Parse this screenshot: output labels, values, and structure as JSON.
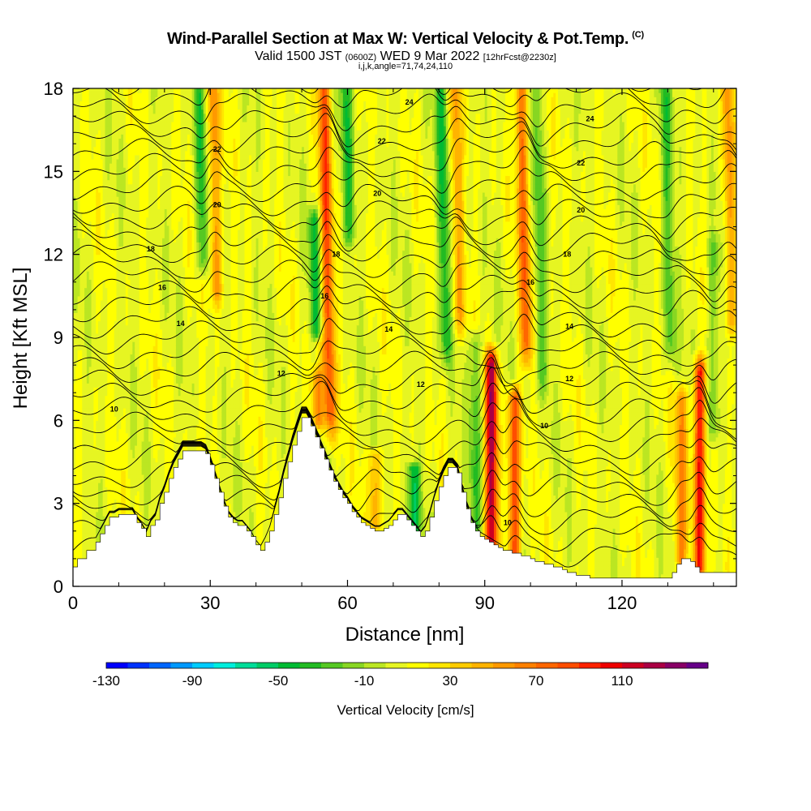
{
  "title": "Wind-Parallel Section at Max W: Vertical Velocity & Pot.Temp.",
  "copyright_mark": "(C)",
  "subtitle_valid": "Valid 1500 JST",
  "subtitle_z": "(0600Z)",
  "subtitle_date": "WED 9 Mar 2022",
  "subtitle_fcst": "[12hrFcst@2230z]",
  "subtitle2": "i,j,k,angle=71,74,24,110",
  "chart_data": {
    "type": "heatmap",
    "xlabel": "Distance [nm]",
    "ylabel": "Height [Kft MSL]",
    "xlim": [
      0,
      145
    ],
    "ylim": [
      0,
      18
    ],
    "x_ticks": [
      0,
      30,
      60,
      90,
      120
    ],
    "y_ticks": [
      0,
      3,
      6,
      9,
      12,
      15,
      18
    ],
    "x_tick_labels": [
      "0",
      "30",
      "60",
      "90",
      "120"
    ],
    "y_tick_labels": [
      "0",
      "3",
      "6",
      "9",
      "12",
      "15",
      "18"
    ],
    "colorbar": {
      "title": "Vertical Velocity [cm/s]",
      "min": -130,
      "max": 150,
      "step": 10,
      "labels": [
        "-130",
        "-90",
        "-50",
        "-10",
        "30",
        "70",
        "110"
      ],
      "label_values": [
        -130,
        -90,
        -50,
        -10,
        30,
        70,
        110
      ],
      "colors": [
        "#0000ff",
        "#0033ff",
        "#0066ff",
        "#0099ff",
        "#00ccff",
        "#00eedd",
        "#00dd99",
        "#00cc66",
        "#00bb33",
        "#22bb22",
        "#55c822",
        "#88d622",
        "#bbe622",
        "#e6f522",
        "#ffff00",
        "#ffe600",
        "#ffcc00",
        "#ffb300",
        "#ff9900",
        "#ff8000",
        "#ff6600",
        "#ff4d00",
        "#ff2200",
        "#ee0000",
        "#cc0022",
        "#aa0044",
        "#880066",
        "#660088"
      ]
    },
    "terrain": {
      "x": [
        0,
        1,
        3,
        5,
        6,
        7,
        8,
        9,
        10,
        11,
        13,
        14,
        15,
        16,
        17,
        18,
        19,
        20,
        21,
        22,
        23,
        24,
        25,
        26,
        28,
        29,
        30,
        31,
        32,
        33,
        34,
        35,
        36,
        37,
        38,
        39,
        40,
        41,
        42,
        43,
        44,
        45,
        46,
        47,
        48,
        49,
        50,
        51,
        52,
        53,
        54,
        55,
        56,
        57,
        58,
        59,
        60,
        61,
        62,
        63,
        64,
        65,
        66,
        67,
        68,
        69,
        70,
        71,
        72,
        73,
        74,
        75,
        76,
        77,
        78,
        79,
        80,
        81,
        82,
        83,
        84,
        85,
        86,
        87,
        88,
        89,
        90,
        91,
        92,
        93,
        94,
        95,
        96,
        97,
        98,
        99,
        100,
        101,
        102,
        103,
        104,
        105,
        106,
        107,
        108,
        109,
        110,
        111,
        112,
        113,
        114,
        115,
        116,
        117,
        118,
        119,
        120,
        121,
        122,
        123,
        124,
        125,
        126,
        127,
        128,
        129,
        130,
        131,
        132,
        133,
        134,
        135,
        136,
        137,
        138,
        139,
        140,
        141,
        142,
        143,
        144,
        145
      ],
      "y": [
        0.7,
        1.0,
        1.3,
        1.6,
        1.9,
        2.2,
        2.5,
        2.5,
        2.6,
        2.6,
        2.6,
        2.3,
        2.1,
        1.8,
        2.2,
        2.4,
        3.0,
        3.4,
        3.9,
        4.3,
        4.6,
        4.9,
        4.9,
        4.9,
        4.9,
        4.8,
        4.4,
        3.9,
        3.4,
        2.9,
        2.5,
        2.3,
        2.2,
        2.2,
        2.0,
        1.8,
        1.5,
        1.3,
        1.6,
        2.0,
        2.6,
        3.2,
        3.9,
        4.5,
        5.1,
        5.6,
        6.1,
        6.1,
        5.8,
        5.4,
        5.0,
        4.6,
        4.2,
        3.8,
        3.5,
        3.2,
        3.0,
        2.7,
        2.5,
        2.3,
        2.2,
        2.1,
        2.0,
        2.0,
        2.1,
        2.2,
        2.4,
        2.6,
        2.6,
        2.4,
        2.2,
        2.0,
        1.8,
        2.0,
        2.5,
        3.1,
        3.6,
        4.0,
        4.3,
        4.3,
        4.1,
        3.4,
        2.8,
        2.3,
        2.0,
        1.8,
        1.7,
        1.6,
        1.5,
        1.4,
        1.3,
        1.3,
        1.2,
        1.2,
        1.1,
        1.1,
        1.0,
        0.9,
        0.9,
        0.8,
        0.8,
        0.7,
        0.7,
        0.6,
        0.5,
        0.5,
        0.4,
        0.4,
        0.4,
        0.3,
        0.3,
        0.3,
        0.3,
        0.3,
        0.3,
        0.3,
        0.3,
        0.3,
        0.3,
        0.3,
        0.3,
        0.3,
        0.3,
        0.3,
        0.3,
        0.3,
        0.3,
        0.5,
        0.8,
        1.0,
        1.0,
        0.9,
        0.7,
        0.5,
        0.5,
        0.5,
        0.5,
        0.5,
        0.5,
        0.5,
        0.5,
        0.5
      ]
    },
    "updrafts": [
      {
        "x": 91.5,
        "y_min": 1.8,
        "y_max": 7.8,
        "peak": 115
      },
      {
        "x": 96.5,
        "y_min": 1.3,
        "y_max": 6.5,
        "peak": 80
      },
      {
        "x": 137,
        "y_min": 1.0,
        "y_max": 7.5,
        "peak": 95
      },
      {
        "x": 133,
        "y_min": 1.2,
        "y_max": 6.5,
        "peak": 50
      },
      {
        "x": 55.5,
        "y_min": 6.5,
        "y_max": 18,
        "peak": 75
      },
      {
        "x": 98.5,
        "y_min": 9,
        "y_max": 18,
        "peak": 65
      },
      {
        "x": 31,
        "y_min": 11,
        "y_max": 18,
        "peak": 50
      },
      {
        "x": 84,
        "y_min": 10,
        "y_max": 18,
        "peak": 40
      },
      {
        "x": 143.5,
        "y_min": 10,
        "y_max": 18,
        "peak": 45
      },
      {
        "x": 66,
        "y_min": 2.5,
        "y_max": 4.5,
        "peak": 40
      },
      {
        "x": 53.5,
        "y_min": 6.2,
        "y_max": 8.5,
        "peak": 55
      }
    ],
    "downdrafts": [
      {
        "x": 53,
        "y_min": 8.5,
        "y_max": 13,
        "peak": -45
      },
      {
        "x": 60,
        "y_min": 13,
        "y_max": 18,
        "peak": -40
      },
      {
        "x": 81,
        "y_min": 9,
        "y_max": 18,
        "peak": -45
      },
      {
        "x": 28,
        "y_min": 12,
        "y_max": 18,
        "peak": -40
      },
      {
        "x": 74.5,
        "y_min": 2.0,
        "y_max": 4.0,
        "peak": -55
      },
      {
        "x": 88,
        "y_min": 2.5,
        "y_max": 8.5,
        "peak": -35
      },
      {
        "x": 102,
        "y_min": 8,
        "y_max": 18,
        "peak": -30
      },
      {
        "x": 130,
        "y_min": 9,
        "y_max": 18,
        "peak": -35
      },
      {
        "x": 140,
        "y_min": 6,
        "y_max": 12,
        "peak": -30
      }
    ],
    "theta_contour_labels": [
      {
        "text": "10",
        "x": 9,
        "y": 6.4
      },
      {
        "text": "10",
        "x": 103,
        "y": 5.8
      },
      {
        "text": "10",
        "x": 95,
        "y": 2.3
      },
      {
        "text": "12",
        "x": 45.5,
        "y": 7.7
      },
      {
        "text": "12",
        "x": 76,
        "y": 7.3
      },
      {
        "text": "12",
        "x": 108.5,
        "y": 7.5
      },
      {
        "text": "14",
        "x": 23.5,
        "y": 9.5
      },
      {
        "text": "14",
        "x": 69,
        "y": 9.3
      },
      {
        "text": "14",
        "x": 108.5,
        "y": 9.4
      },
      {
        "text": "16",
        "x": 19.5,
        "y": 10.8
      },
      {
        "text": "16",
        "x": 55,
        "y": 10.5
      },
      {
        "text": "16",
        "x": 100,
        "y": 11.0
      },
      {
        "text": "18",
        "x": 17,
        "y": 12.2
      },
      {
        "text": "18",
        "x": 57.5,
        "y": 12.0
      },
      {
        "text": "18",
        "x": 108,
        "y": 12.0
      },
      {
        "text": "20",
        "x": 31.5,
        "y": 13.8
      },
      {
        "text": "20",
        "x": 66.5,
        "y": 14.2
      },
      {
        "text": "20",
        "x": 111,
        "y": 13.6
      },
      {
        "text": "22",
        "x": 31.5,
        "y": 15.8
      },
      {
        "text": "22",
        "x": 67.5,
        "y": 16.1
      },
      {
        "text": "22",
        "x": 111,
        "y": 15.3
      },
      {
        "text": "24",
        "x": 73.5,
        "y": 17.5
      },
      {
        "text": "24",
        "x": 113,
        "y": 16.9
      }
    ]
  }
}
